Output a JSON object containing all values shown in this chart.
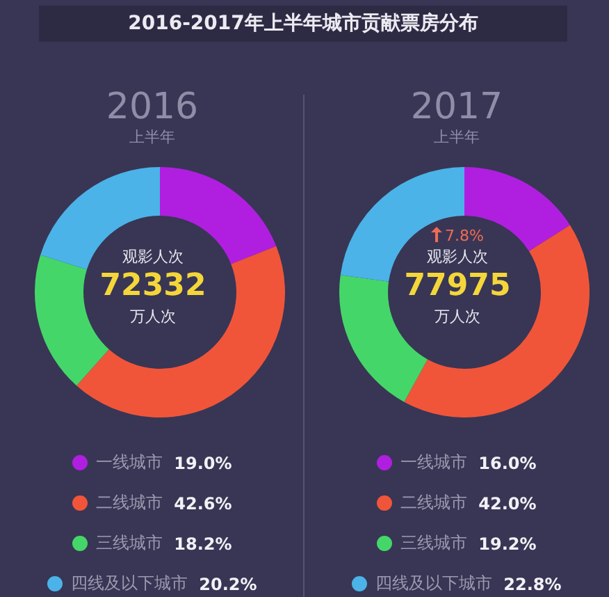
{
  "chart_data": [
    {
      "type": "donut",
      "title": "2016",
      "subtitle": "上半年",
      "categories": [
        "一线城市",
        "二线城市",
        "三线城市",
        "四线及以下城市"
      ],
      "values": [
        19.0,
        42.6,
        18.2,
        20.2
      ],
      "colors": [
        "#b01fe0",
        "#f0553a",
        "#45d66a",
        "#4bb3e8"
      ],
      "value_labels": [
        "19.0%",
        "42.6%",
        "18.2%",
        "20.2%"
      ],
      "legend": "bottom",
      "annotations": [
        "2016-2017年上半年城市贡献票房分布",
        "观影人次",
        "72332",
        "万人次"
      ]
    },
    {
      "type": "donut",
      "title": "2017",
      "subtitle": "上半年",
      "categories": [
        "一线城市",
        "二线城市",
        "三线城市",
        "四线及以下城市"
      ],
      "values": [
        16.0,
        42.0,
        19.2,
        22.8
      ],
      "colors": [
        "#b01fe0",
        "#f0553a",
        "#45d66a",
        "#4bb3e8"
      ],
      "value_labels": [
        "16.0%",
        "42.0%",
        "19.2%",
        "22.8%"
      ],
      "legend": "bottom",
      "annotations": [
        "7.8%",
        "观影人次",
        "77975",
        "万人次"
      ]
    }
  ]
}
